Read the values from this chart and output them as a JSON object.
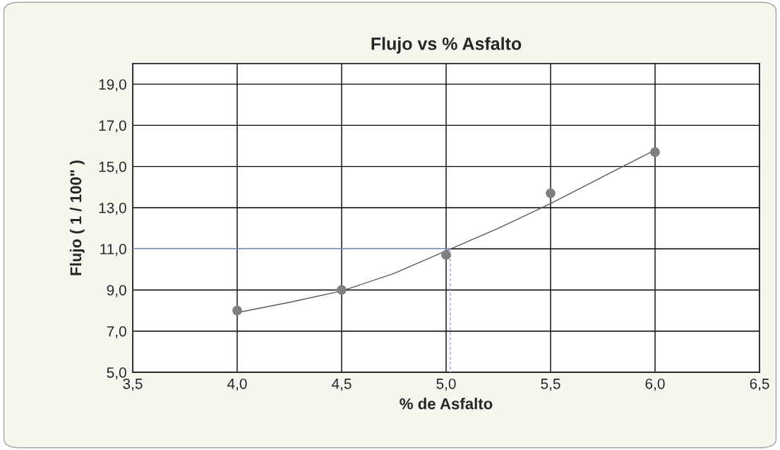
{
  "chart_data": {
    "type": "scatter",
    "title": "Flujo vs % Asfalto",
    "xlabel": "% de Asfalto",
    "ylabel": "Flujo ( 1 / 100\" )",
    "xlim": [
      3.5,
      6.5
    ],
    "ylim": [
      5.0,
      20.0
    ],
    "xticks": [
      {
        "value": 3.5,
        "label": "3,5"
      },
      {
        "value": 4.0,
        "label": "4,0"
      },
      {
        "value": 4.5,
        "label": "4,5"
      },
      {
        "value": 5.0,
        "label": "5,0"
      },
      {
        "value": 5.5,
        "label": "5,5"
      },
      {
        "value": 6.0,
        "label": "6,0"
      },
      {
        "value": 6.5,
        "label": "6,5"
      }
    ],
    "yticks": [
      {
        "value": 5,
        "label": "5,0"
      },
      {
        "value": 7,
        "label": "7,0"
      },
      {
        "value": 9,
        "label": "9,0"
      },
      {
        "value": 11,
        "label": "11,0"
      },
      {
        "value": 13,
        "label": "13,0"
      },
      {
        "value": 15,
        "label": "15,0"
      },
      {
        "value": 17,
        "label": "17,0"
      },
      {
        "value": 19,
        "label": "19,0"
      }
    ],
    "grid": true,
    "series": [
      {
        "marker": "circle",
        "color": "#7f7f7f",
        "x": [
          4.0,
          4.5,
          5.0,
          5.5,
          6.0
        ],
        "values": [
          8.0,
          9.0,
          10.7,
          13.7,
          15.7
        ]
      },
      {
        "type": "line",
        "color": "#595959",
        "marker": "none",
        "line_style": "solid",
        "x": [
          4.0,
          4.25,
          4.5,
          4.75,
          5.0,
          5.25,
          5.5,
          5.75,
          6.0
        ],
        "values": [
          7.9,
          8.4,
          8.95,
          9.8,
          10.9,
          12.0,
          13.2,
          14.5,
          15.8
        ]
      },
      {
        "type": "line",
        "color": "#8ea9db",
        "marker": "none",
        "line_style": "solid",
        "x": [
          3.5,
          5.02
        ],
        "values": [
          11.0,
          11.0
        ]
      },
      {
        "type": "line",
        "color": "#8ea9db",
        "marker": "none",
        "line_style": "dashed",
        "x": [
          5.02,
          5.02
        ],
        "values": [
          11.0,
          5.0
        ]
      }
    ]
  }
}
